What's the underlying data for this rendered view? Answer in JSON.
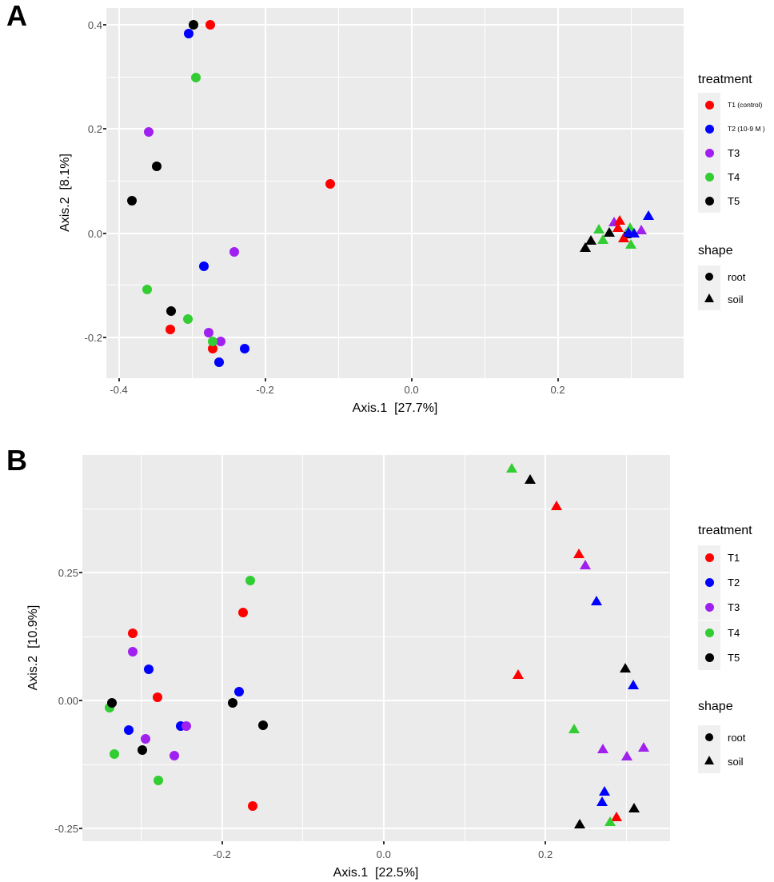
{
  "styles": {
    "plot_background": "#EBEBEB",
    "grid_color": "#FFFFFF",
    "tick_label_color": "#4D4D4D",
    "axis_title_color": "#000000",
    "legend_key_background": "#F0F0F0",
    "treatment_colors": {
      "T1": "#FF0000",
      "T2": "#0000FF",
      "T3": "#A020F0",
      "T4": "#32CD32",
      "T5": "#000000"
    }
  },
  "chart_data": [
    {
      "type": "scatter",
      "panel_label": "A",
      "xlabel": "Axis.1  [27.7%]",
      "ylabel": "Axis.2  [8.1%]",
      "xlim": [
        -0.417,
        0.372
      ],
      "ylim": [
        -0.278,
        0.432
      ],
      "grid": true,
      "legend_position": "right",
      "x_ticks": {
        "values": [
          -0.4,
          -0.2,
          0.0,
          0.2
        ],
        "labels": [
          "-0.4",
          "-0.2",
          "0.0",
          "0.2"
        ],
        "minor": [
          -0.3,
          -0.1,
          0.1,
          0.3
        ]
      },
      "y_ticks": {
        "values": [
          0.4,
          0.2,
          0.0,
          -0.2
        ],
        "labels": [
          "0.4",
          "0.2",
          "0.0",
          "-0.2"
        ],
        "minor": [
          0.3,
          0.1,
          -0.1
        ]
      },
      "legend": {
        "treatment_title": "treatment",
        "treatment_items": [
          {
            "label": "T1 (control)",
            "color": "#FF0000",
            "small_text": true
          },
          {
            "label": "T2 (10-9 M )",
            "color": "#0000FF",
            "small_text": true
          },
          {
            "label": "T3",
            "color": "#A020F0",
            "small_text": false
          },
          {
            "label": "T4",
            "color": "#32CD32",
            "small_text": false
          },
          {
            "label": "T5",
            "color": "#000000",
            "small_text": false
          }
        ],
        "shape_title": "shape",
        "shape_items": [
          {
            "label": "root",
            "marker": "circle"
          },
          {
            "label": "soil",
            "marker": "triangle"
          }
        ]
      },
      "series": [
        {
          "treatment": "T1",
          "shape": "root",
          "marker": "circle",
          "color": "#FF0000",
          "points": [
            [
              -0.275,
              0.4
            ],
            [
              -0.111,
              0.094
            ],
            [
              -0.33,
              -0.185
            ],
            [
              -0.272,
              -0.221
            ]
          ]
        },
        {
          "treatment": "T2",
          "shape": "root",
          "marker": "circle",
          "color": "#0000FF",
          "points": [
            [
              -0.304,
              0.383
            ],
            [
              -0.284,
              -0.063
            ],
            [
              -0.228,
              -0.222
            ],
            [
              -0.263,
              -0.248
            ]
          ]
        },
        {
          "treatment": "T3",
          "shape": "root",
          "marker": "circle",
          "color": "#A020F0",
          "points": [
            [
              -0.359,
              0.194
            ],
            [
              -0.242,
              -0.036
            ],
            [
              -0.277,
              -0.19
            ],
            [
              -0.261,
              -0.207
            ]
          ]
        },
        {
          "treatment": "T4",
          "shape": "root",
          "marker": "circle",
          "color": "#32CD32",
          "points": [
            [
              -0.295,
              0.298
            ],
            [
              -0.361,
              -0.108
            ],
            [
              -0.306,
              -0.164
            ],
            [
              -0.272,
              -0.207
            ]
          ]
        },
        {
          "treatment": "T5",
          "shape": "root",
          "marker": "circle",
          "color": "#000000",
          "points": [
            [
              -0.298,
              0.4
            ],
            [
              -0.348,
              0.128
            ],
            [
              -0.382,
              0.062
            ],
            [
              -0.329,
              -0.149
            ]
          ]
        },
        {
          "treatment": "T5",
          "shape": "soil",
          "marker": "triangle",
          "color": "#000000",
          "points": [
            [
              0.27,
              0.001
            ],
            [
              0.245,
              -0.015
            ],
            [
              0.238,
              -0.028
            ],
            [
              0.293,
              -0.002
            ]
          ]
        },
        {
          "treatment": "T4",
          "shape": "soil",
          "marker": "triangle",
          "color": "#32CD32",
          "points": [
            [
              0.256,
              0.007
            ],
            [
              0.299,
              0.01
            ],
            [
              0.262,
              -0.013
            ],
            [
              0.3,
              -0.022
            ]
          ]
        },
        {
          "treatment": "T3",
          "shape": "soil",
          "marker": "triangle",
          "color": "#A020F0",
          "points": [
            [
              0.277,
              0.021
            ],
            [
              0.314,
              0.005
            ]
          ]
        },
        {
          "treatment": "T1",
          "shape": "soil",
          "marker": "triangle",
          "color": "#FF0000",
          "points": [
            [
              0.285,
              0.024
            ],
            [
              0.282,
              0.01
            ],
            [
              0.29,
              -0.011
            ]
          ]
        },
        {
          "treatment": "T2",
          "shape": "soil",
          "marker": "triangle",
          "color": "#0000FF",
          "points": [
            [
              0.324,
              0.033
            ],
            [
              0.304,
              -0.001
            ],
            [
              0.297,
              0.001
            ]
          ]
        }
      ]
    },
    {
      "type": "scatter",
      "panel_label": "B",
      "xlabel": "Axis.1  [22.5%]",
      "ylabel": "Axis.2  [10.9%]",
      "xlim": [
        -0.3725,
        0.354
      ],
      "ylim": [
        -0.2745,
        0.48
      ],
      "grid": true,
      "legend_position": "right",
      "x_ticks": {
        "values": [
          -0.2,
          0.0,
          0.2
        ],
        "labels": [
          "-0.2",
          "0.0",
          "0.2"
        ],
        "minor": [
          -0.3,
          -0.1,
          0.1,
          0.3
        ]
      },
      "y_ticks": {
        "values": [
          0.25,
          0.0,
          -0.25
        ],
        "labels": [
          "0.25",
          "0.00",
          "-0.25"
        ],
        "minor": [
          0.375,
          0.125,
          -0.125
        ]
      },
      "legend": {
        "treatment_title": "treatment",
        "treatment_items": [
          {
            "label": "T1",
            "color": "#FF0000",
            "small_text": false
          },
          {
            "label": "T2",
            "color": "#0000FF",
            "small_text": false
          },
          {
            "label": "T3",
            "color": "#A020F0",
            "small_text": false
          },
          {
            "label": "T4",
            "color": "#32CD32",
            "small_text": false
          },
          {
            "label": "T5",
            "color": "#000000",
            "small_text": false
          }
        ],
        "shape_title": "shape",
        "shape_items": [
          {
            "label": "root",
            "marker": "circle"
          },
          {
            "label": "soil",
            "marker": "triangle"
          }
        ]
      },
      "series": [
        {
          "treatment": "T1",
          "shape": "root",
          "marker": "circle",
          "color": "#FF0000",
          "points": [
            [
              -0.31,
              0.131
            ],
            [
              -0.174,
              0.172
            ],
            [
              -0.28,
              0.006
            ],
            [
              -0.162,
              -0.206
            ]
          ]
        },
        {
          "treatment": "T2",
          "shape": "root",
          "marker": "circle",
          "color": "#0000FF",
          "points": [
            [
              -0.29,
              0.062
            ],
            [
              -0.179,
              0.018
            ],
            [
              -0.251,
              -0.049
            ],
            [
              -0.315,
              -0.058
            ]
          ]
        },
        {
          "treatment": "T3",
          "shape": "root",
          "marker": "circle",
          "color": "#A020F0",
          "points": [
            [
              -0.31,
              0.095
            ],
            [
              -0.244,
              -0.049
            ],
            [
              -0.294,
              -0.074
            ],
            [
              -0.259,
              -0.108
            ]
          ]
        },
        {
          "treatment": "T4",
          "shape": "root",
          "marker": "circle",
          "color": "#32CD32",
          "points": [
            [
              -0.165,
              0.235
            ],
            [
              -0.339,
              -0.014
            ],
            [
              -0.333,
              -0.104
            ],
            [
              -0.279,
              -0.155
            ]
          ]
        },
        {
          "treatment": "T5",
          "shape": "root",
          "marker": "circle",
          "color": "#000000",
          "points": [
            [
              -0.336,
              -0.005
            ],
            [
              -0.187,
              -0.004
            ],
            [
              -0.149,
              -0.048
            ],
            [
              -0.298,
              -0.097
            ]
          ]
        },
        {
          "treatment": "T1",
          "shape": "soil",
          "marker": "triangle",
          "color": "#FF0000",
          "points": [
            [
              0.214,
              0.38
            ],
            [
              0.241,
              0.285
            ],
            [
              0.166,
              0.05
            ],
            [
              0.288,
              -0.229
            ]
          ]
        },
        {
          "treatment": "T2",
          "shape": "soil",
          "marker": "triangle",
          "color": "#0000FF",
          "points": [
            [
              0.263,
              0.194
            ],
            [
              0.309,
              0.029
            ],
            [
              0.273,
              -0.179
            ],
            [
              0.27,
              -0.199
            ]
          ]
        },
        {
          "treatment": "T3",
          "shape": "soil",
          "marker": "triangle",
          "color": "#A020F0",
          "points": [
            [
              0.249,
              0.263
            ],
            [
              0.271,
              -0.096
            ],
            [
              0.321,
              -0.093
            ],
            [
              0.301,
              -0.109
            ]
          ]
        },
        {
          "treatment": "T4",
          "shape": "soil",
          "marker": "triangle",
          "color": "#32CD32",
          "points": [
            [
              0.158,
              0.452
            ],
            [
              0.235,
              -0.057
            ],
            [
              0.28,
              -0.238
            ]
          ]
        },
        {
          "treatment": "T5",
          "shape": "soil",
          "marker": "triangle",
          "color": "#000000",
          "points": [
            [
              0.181,
              0.431
            ],
            [
              0.299,
              0.063
            ],
            [
              0.31,
              -0.211
            ],
            [
              0.242,
              -0.243
            ]
          ]
        }
      ]
    }
  ]
}
